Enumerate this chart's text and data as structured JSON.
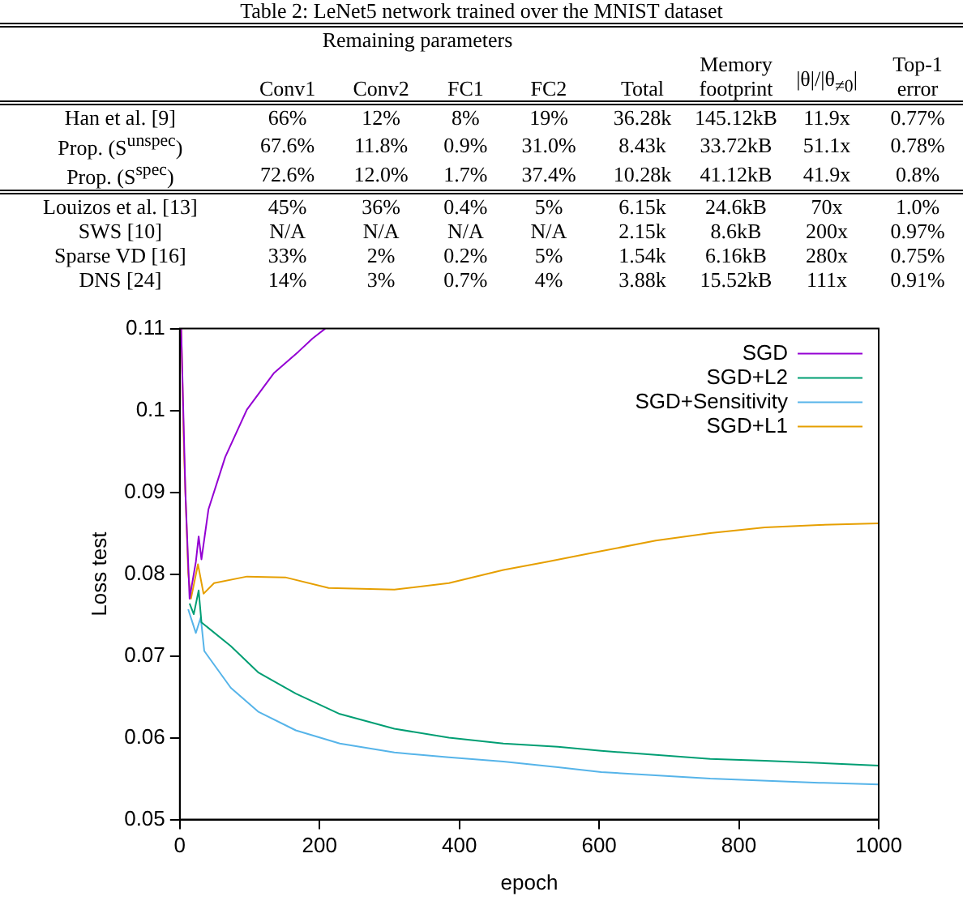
{
  "chart_data": [
    {
      "type": "other",
      "title": "Table 2: LeNet5 network trained over the MNIST dataset",
      "categories": [
        null,
        "Conv1",
        "Conv2",
        "FC1",
        "FC2",
        "Total",
        "Memory footprint",
        "|θ|/|θ$_{≠0}$|",
        "Top-1 error"
      ],
      "annotations": [
        "Remaining parameters",
        "Han et al. [9]",
        "66%",
        "12%",
        "8%",
        "19%",
        "36.28k",
        "145.12kB",
        "11.9x",
        "0.77%",
        "Prop. (S$^{unspec}$)",
        "67.6%",
        "11.8%",
        "0.9%",
        "31.0%",
        "8.43k",
        "33.72kB",
        "51.1x",
        "0.78%",
        "Prop. (S$^{spec}$)",
        "72.6%",
        "12.0%",
        "1.7%",
        "37.4%",
        "10.28k",
        "41.12kB",
        "41.9x",
        "0.8%",
        "Louizos et al. [13]",
        "45%",
        "36%",
        "0.4%",
        "5%",
        "6.15k",
        "24.6kB",
        "70x",
        "1.0%",
        "SWS [10]",
        "N/A",
        "N/A",
        "N/A",
        "N/A",
        "2.15k",
        "8.6kB",
        "200x",
        "0.97%",
        "Sparse VD [16]",
        "33%",
        "2%",
        "0.2%",
        "5%",
        "1.54k",
        "6.16kB",
        "280x",
        "0.75%",
        "DNS [24]",
        "14%",
        "3%",
        "0.7%",
        "4%",
        "3.88k",
        "15.52kB",
        "111x",
        "0.91%"
      ]
    },
    {
      "type": "line",
      "xlabel": "epoch",
      "ylabel": "Loss test",
      "xlim": [
        0,
        1000
      ],
      "xticks": [
        0,
        200,
        400,
        600,
        800,
        1000
      ],
      "ylim": [
        0.05,
        0.11
      ],
      "yticks": [
        0.05,
        0.06,
        0.07,
        0.08,
        0.09,
        0.1,
        0.11
      ],
      "grid": false,
      "legend": "top right",
      "series": [
        {
          "name": "SGD",
          "color": "#9400d3",
          "x": [
            2,
            8,
            14,
            23,
            27,
            31,
            41,
            65,
            96,
            135,
            170,
            190,
            208
          ],
          "values": [
            0.11,
            0.09,
            0.077,
            0.0815,
            0.0846,
            0.0818,
            0.0879,
            0.0943,
            0.1001,
            0.1046,
            0.1072,
            0.1088,
            0.11
          ]
        },
        {
          "name": "SGD+L2",
          "color": "#009e73",
          "x": [
            14,
            20,
            27,
            31,
            73,
            112,
            166,
            229,
            307,
            385,
            463,
            541,
            603,
            759,
            837,
            1000
          ],
          "values": [
            0.0764,
            0.0751,
            0.078,
            0.0741,
            0.0712,
            0.068,
            0.0654,
            0.0629,
            0.0611,
            0.06,
            0.0593,
            0.0589,
            0.0584,
            0.0574,
            0.0572,
            0.0566
          ]
        },
        {
          "name": "SGD+Sensitivity",
          "color": "#56b4e9",
          "x": [
            12,
            23,
            30,
            35,
            73,
            112,
            166,
            229,
            307,
            385,
            463,
            541,
            603,
            759,
            915,
            1000
          ],
          "values": [
            0.0757,
            0.0728,
            0.0747,
            0.0706,
            0.0661,
            0.0632,
            0.0609,
            0.0593,
            0.0582,
            0.0576,
            0.0571,
            0.0564,
            0.0558,
            0.055,
            0.0545,
            0.0543
          ]
        },
        {
          "name": "SGD+L1",
          "color": "#e69f00",
          "x": [
            2,
            6,
            12,
            16,
            26,
            34,
            49,
            96,
            151,
            213,
            307,
            385,
            463,
            525,
            603,
            681,
            759,
            837,
            915,
            1000
          ],
          "values": [
            0.11,
            0.095,
            0.0802,
            0.077,
            0.0812,
            0.0776,
            0.0789,
            0.0797,
            0.0796,
            0.0783,
            0.0781,
            0.0789,
            0.0805,
            0.0815,
            0.0828,
            0.0841,
            0.085,
            0.0857,
            0.086,
            0.0862
          ]
        }
      ]
    }
  ]
}
